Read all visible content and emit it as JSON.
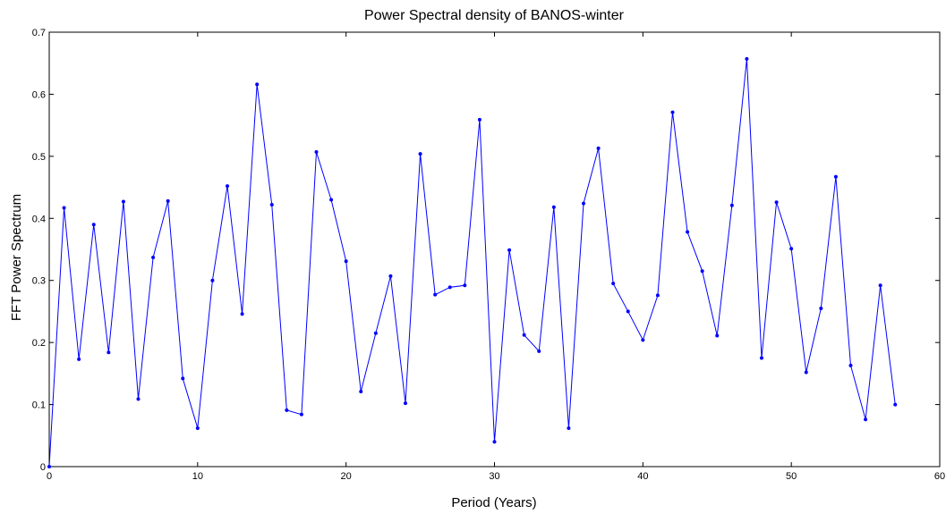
{
  "chart_data": {
    "type": "line",
    "title": "Power Spectral density of BANOS-winter",
    "xlabel": "Period (Years)",
    "ylabel": "FFT Power Spectrum",
    "xlim": [
      0,
      60
    ],
    "ylim": [
      0,
      0.7
    ],
    "xticks": [
      0,
      10,
      20,
      30,
      40,
      50,
      60
    ],
    "yticks": [
      0,
      0.1,
      0.2,
      0.3,
      0.4,
      0.5,
      0.6,
      0.7
    ],
    "xtick_labels": [
      "0",
      "10",
      "20",
      "30",
      "40",
      "50",
      "60"
    ],
    "ytick_labels": [
      "0",
      "0.1",
      "0.2",
      "0.3",
      "0.4",
      "0.5",
      "0.6",
      "0.7"
    ],
    "grid": false,
    "series_color": "#0000ff",
    "x": [
      0,
      1,
      2,
      3,
      4,
      5,
      6,
      7,
      8,
      9,
      10,
      11,
      12,
      13,
      14,
      15,
      16,
      17,
      18,
      19,
      20,
      21,
      22,
      23,
      24,
      25,
      26,
      27,
      28,
      29,
      30,
      31,
      32,
      33,
      34,
      35,
      36,
      37,
      38,
      39,
      40,
      41,
      42,
      43,
      44,
      45,
      46,
      47,
      48,
      49,
      50,
      51,
      52,
      53,
      54,
      55,
      56,
      57
    ],
    "y": [
      0.0,
      0.417,
      0.173,
      0.39,
      0.184,
      0.427,
      0.109,
      0.337,
      0.428,
      0.142,
      0.062,
      0.3,
      0.452,
      0.246,
      0.616,
      0.422,
      0.091,
      0.084,
      0.507,
      0.43,
      0.331,
      0.121,
      0.215,
      0.307,
      0.102,
      0.504,
      0.277,
      0.289,
      0.292,
      0.559,
      0.04,
      0.349,
      0.212,
      0.186,
      0.418,
      0.062,
      0.424,
      0.513,
      0.295,
      0.25,
      0.204,
      0.276,
      0.571,
      0.378,
      0.315,
      0.211,
      0.421,
      0.657,
      0.175,
      0.426,
      0.351,
      0.152,
      0.255,
      0.467,
      0.163,
      0.076,
      0.292,
      0.1
    ]
  }
}
